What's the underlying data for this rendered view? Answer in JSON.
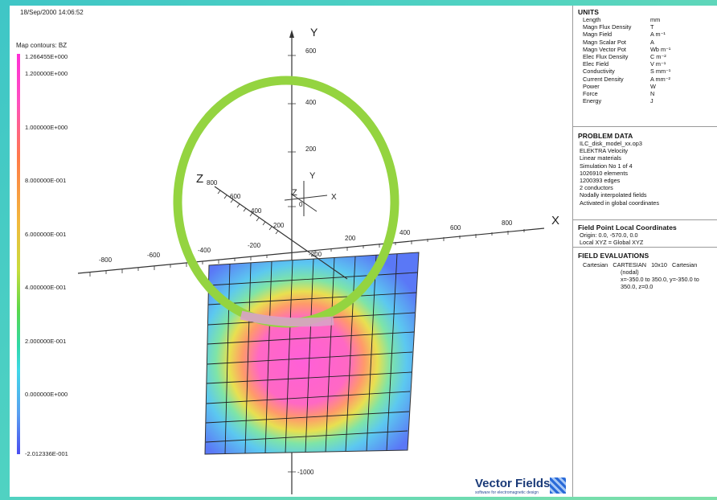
{
  "timestamp": "18/Sep/2000 14:06:52",
  "map_label": "Map contours: BZ",
  "scale_ticks": [
    "1.266455E+000",
    "1.200000E+000",
    "1.000000E+000",
    "8.000000E-001",
    "6.000000E-001",
    "4.000000E-001",
    "2.000000E-001",
    "0.000000E+000",
    "-2.012336E-001"
  ],
  "axis_labels": {
    "x": "X",
    "y": "Y",
    "z": "Z",
    "local_x": "X",
    "local_y": "Y",
    "local_z": "Z",
    "y_ticks": [
      "600",
      "400",
      "200",
      "0",
      "-1000"
    ],
    "x_ticks": [
      "-800",
      "-600",
      "-400",
      "-200",
      "200",
      "400",
      "600",
      "800"
    ],
    "x_neg_200b": "-200",
    "z_ticks": [
      "800",
      "600",
      "400",
      "200"
    ]
  },
  "units": {
    "title": "UNITS",
    "rows": [
      [
        "Length",
        "mm"
      ],
      [
        "Magn Flux Density",
        "T"
      ],
      [
        "Magn Field",
        "A m⁻¹"
      ],
      [
        "Magn Scalar Pot",
        "A"
      ],
      [
        "Magn Vector Pot",
        "Wb m⁻¹"
      ],
      [
        "Elec Flux Density",
        "C m⁻²"
      ],
      [
        "Elec Field",
        "V m⁻¹"
      ],
      [
        "Conductivity",
        "S mm⁻¹"
      ],
      [
        "Current Density",
        "A mm⁻²"
      ],
      [
        "Power",
        "W"
      ],
      [
        "Force",
        "N"
      ],
      [
        "Energy",
        "J"
      ]
    ]
  },
  "problem": {
    "title": "PROBLEM DATA",
    "lines": [
      "ILC_disk_model_xx.op3",
      "ELEKTRA Velocity",
      "Linear materials",
      "Simulation No 1 of 4",
      "1026910 elements",
      "1200393 edges",
      "2 conductors",
      "Nodally interpolated fields",
      "Activated in global coordinates"
    ]
  },
  "fieldpoint": {
    "title": "Field Point Local Coordinates",
    "lines": [
      "Origin: 0.0, -570.0, 0.0",
      "Local XYZ = Global XYZ"
    ]
  },
  "evaluations": {
    "title": "FIELD EVALUATIONS",
    "c1": "Cartesian",
    "c2": "CARTESIAN",
    "c3": "10x10",
    "c4": "Cartesian",
    "l2": "(nodal)",
    "l3": "x=-350.0 to 350.0, y=-350.0 to",
    "l4": "350.0, z=0.0"
  },
  "logo": {
    "name": "Vector Fields",
    "tagline": "software for electromagnetic design"
  }
}
